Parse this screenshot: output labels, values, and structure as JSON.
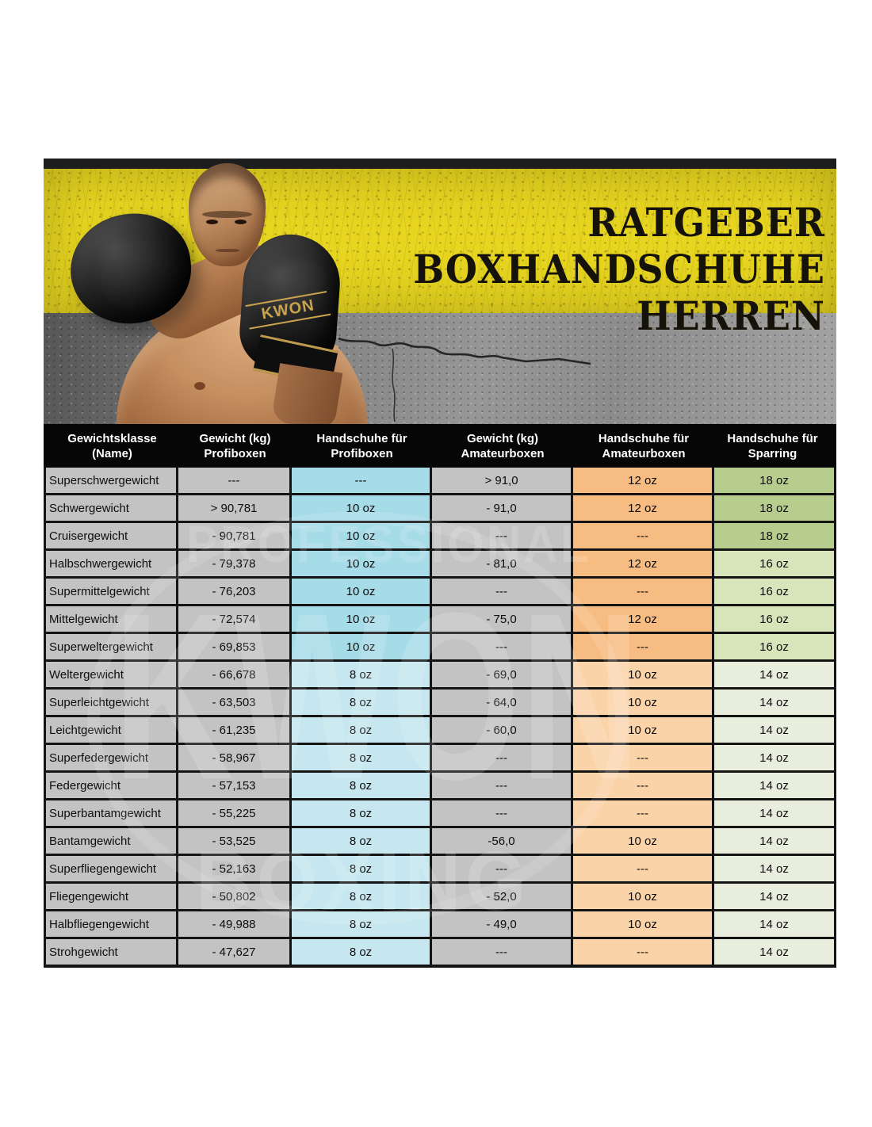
{
  "banner": {
    "title_lines": [
      "RATGEBER",
      "BOXHANDSCHUHE",
      "HERREN"
    ],
    "glove_brand": "KWON",
    "accent_yellow": "#e7d520"
  },
  "watermark": {
    "line1": "PROFESSIONAL",
    "line2": "KWON",
    "line3": "BOXING"
  },
  "table": {
    "headers": [
      {
        "line1": "Gewichtsklasse",
        "line2": "(Name)"
      },
      {
        "line1": "Gewicht (kg)",
        "line2": "Profiboxen"
      },
      {
        "line1": "Handschuhe für",
        "line2": "Profiboxen"
      },
      {
        "line1": "Gewicht (kg)",
        "line2": "Amateurboxen"
      },
      {
        "line1": "Handschuhe für",
        "line2": "Amateurboxen"
      },
      {
        "line1": "Handschuhe für",
        "line2": "Sparring"
      }
    ],
    "cell_colors": {
      "gray": "#c3c3c3",
      "blue_dark": "#a6dbe8",
      "blue_light": "#c6e7ef",
      "orange_dark": "#f6bc82",
      "orange_light": "#fbd3a8",
      "green_dark": "#b6cd8e",
      "green_mid": "#d8e5ba",
      "green_light": "#e9edde"
    },
    "rows": [
      {
        "name": "Superschwergewicht",
        "kg_profi": "---",
        "glove_profi": "---",
        "kg_amateur": "> 91,0",
        "glove_amateur": "12 oz",
        "glove_sparring": "18 oz",
        "tone": "a"
      },
      {
        "name": "Schwergewicht",
        "kg_profi": "> 90,781",
        "glove_profi": "10 oz",
        "kg_amateur": "- 91,0",
        "glove_amateur": "12 oz",
        "glove_sparring": "18 oz",
        "tone": "a"
      },
      {
        "name": "Cruisergewicht",
        "kg_profi": "- 90,781",
        "glove_profi": "10 oz",
        "kg_amateur": "---",
        "glove_amateur": "---",
        "glove_sparring": "18 oz",
        "tone": "a"
      },
      {
        "name": "Halbschwergewicht",
        "kg_profi": "- 79,378",
        "glove_profi": "10 oz",
        "kg_amateur": "- 81,0",
        "glove_amateur": "12 oz",
        "glove_sparring": "16 oz",
        "tone": "b"
      },
      {
        "name": "Supermittelgewicht",
        "kg_profi": "- 76,203",
        "glove_profi": "10 oz",
        "kg_amateur": "---",
        "glove_amateur": "---",
        "glove_sparring": "16 oz",
        "tone": "b"
      },
      {
        "name": "Mittelgewicht",
        "kg_profi": "- 72,574",
        "glove_profi": "10 oz",
        "kg_amateur": "- 75,0",
        "glove_amateur": "12 oz",
        "glove_sparring": "16 oz",
        "tone": "b"
      },
      {
        "name": "Superweltergewicht",
        "kg_profi": "- 69,853",
        "glove_profi": "10 oz",
        "kg_amateur": "---",
        "glove_amateur": "---",
        "glove_sparring": "16 oz",
        "tone": "b"
      },
      {
        "name": "Weltergewicht",
        "kg_profi": "- 66,678",
        "glove_profi": "8 oz",
        "kg_amateur": "- 69,0",
        "glove_amateur": "10 oz",
        "glove_sparring": "14 oz",
        "tone": "c"
      },
      {
        "name": "Superleichtgewicht",
        "kg_profi": "- 63,503",
        "glove_profi": "8 oz",
        "kg_amateur": "- 64,0",
        "glove_amateur": "10 oz",
        "glove_sparring": "14 oz",
        "tone": "c"
      },
      {
        "name": "Leichtgewicht",
        "kg_profi": "- 61,235",
        "glove_profi": "8 oz",
        "kg_amateur": "- 60,0",
        "glove_amateur": "10 oz",
        "glove_sparring": "14 oz",
        "tone": "c"
      },
      {
        "name": "Superfedergewicht",
        "kg_profi": "- 58,967",
        "glove_profi": "8 oz",
        "kg_amateur": "---",
        "glove_amateur": "---",
        "glove_sparring": "14 oz",
        "tone": "c"
      },
      {
        "name": "Federgewicht",
        "kg_profi": "- 57,153",
        "glove_profi": "8 oz",
        "kg_amateur": "---",
        "glove_amateur": "---",
        "glove_sparring": "14 oz",
        "tone": "c"
      },
      {
        "name": "Superbantamgewicht",
        "kg_profi": "- 55,225",
        "glove_profi": "8 oz",
        "kg_amateur": "---",
        "glove_amateur": "---",
        "glove_sparring": "14 oz",
        "tone": "c"
      },
      {
        "name": "Bantamgewicht",
        "kg_profi": "- 53,525",
        "glove_profi": "8 oz",
        "kg_amateur": "-56,0",
        "glove_amateur": "10 oz",
        "glove_sparring": "14 oz",
        "tone": "c"
      },
      {
        "name": "Superfliegengewicht",
        "kg_profi": "- 52,163",
        "glove_profi": "8 oz",
        "kg_amateur": "---",
        "glove_amateur": "---",
        "glove_sparring": "14 oz",
        "tone": "c"
      },
      {
        "name": "Fliegengewicht",
        "kg_profi": "- 50,802",
        "glove_profi": "8 oz",
        "kg_amateur": "- 52,0",
        "glove_amateur": "10 oz",
        "glove_sparring": "14 oz",
        "tone": "c"
      },
      {
        "name": "Halbfliegengewicht",
        "kg_profi": "- 49,988",
        "glove_profi": "8 oz",
        "kg_amateur": "- 49,0",
        "glove_amateur": "10 oz",
        "glove_sparring": "14 oz",
        "tone": "c"
      },
      {
        "name": "Strohgewicht",
        "kg_profi": "- 47,627",
        "glove_profi": "8 oz",
        "kg_amateur": "---",
        "glove_amateur": "---",
        "glove_sparring": "14 oz",
        "tone": "c"
      }
    ]
  }
}
